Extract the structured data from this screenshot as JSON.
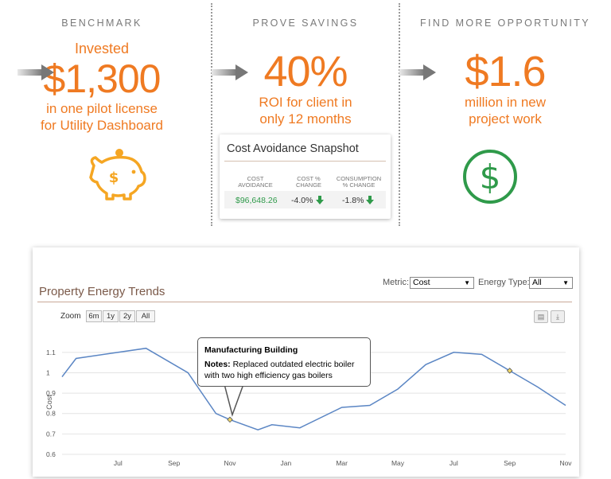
{
  "benchmark": {
    "heading": "BENCHMARK",
    "pre": "Invested",
    "value": "$1,300",
    "line1": "in one pilot license",
    "line2": "for Utility Dashboard",
    "icon": "piggy-bank-icon"
  },
  "savings": {
    "heading": "PROVE SAVINGS",
    "value": "40%",
    "line1": "ROI for client in",
    "line2": "only 12 months"
  },
  "opportunity": {
    "heading": "FIND MORE OPPORTUNITY",
    "value": "$1.6",
    "line1": "million in new",
    "line2": "project work",
    "icon": "dollar-circle-icon"
  },
  "snapshot": {
    "title": "Cost Avoidance Snapshot",
    "headers": [
      {
        "l1": "COST",
        "l2": "AVOIDANCE"
      },
      {
        "l1": "COST %",
        "l2": "CHANGE"
      },
      {
        "l1": "CONSUMPTION",
        "l2": "% CHANGE"
      }
    ],
    "values": [
      "$96,648.26",
      "-4.0%",
      "-1.8%"
    ]
  },
  "trends": {
    "title": "Property Energy Trends",
    "metric_label": "Metric:",
    "metric_value": "Cost",
    "energy_label": "Energy Type:",
    "energy_value": "All",
    "zoom_label": "Zoom",
    "zoom_buttons": [
      "6m",
      "1y",
      "2y",
      "All"
    ],
    "tooltip": {
      "title": "Manufacturing Building",
      "notes_label": "Notes:",
      "notes_text": "Replaced outdated electric boiler with two high efficiency gas boilers"
    }
  },
  "colors": {
    "accent": "#ef7a22",
    "piggy": "#f5a623",
    "green": "#2f9a4a",
    "line": "#5b86c4"
  },
  "chart_data": {
    "type": "line",
    "ylabel": "Cost",
    "ylim": [
      0.6,
      1.15
    ],
    "yticks": [
      "0.6",
      "0.7",
      "0.8",
      "0.9",
      "1",
      "1.1"
    ],
    "xticks": [
      {
        "label": "Jul",
        "t": 2
      },
      {
        "label": "Sep",
        "t": 4
      },
      {
        "label": "Nov",
        "t": 6
      },
      {
        "label": "Jan",
        "t": 8
      },
      {
        "label": "Mar",
        "t": 10
      },
      {
        "label": "May",
        "t": 12
      },
      {
        "label": "Jul",
        "t": 14
      },
      {
        "label": "Sep",
        "t": 16
      },
      {
        "label": "Nov",
        "t": 18
      }
    ],
    "series": [
      {
        "t": [
          0,
          0.5,
          3,
          4.5,
          5.5,
          6,
          7,
          7.5,
          8.5,
          10,
          11,
          12,
          13,
          14,
          15,
          16,
          17,
          18
        ],
        "values": [
          0.98,
          1.07,
          1.12,
          1.0,
          0.8,
          0.77,
          0.72,
          0.745,
          0.73,
          0.83,
          0.84,
          0.92,
          1.04,
          1.1,
          1.09,
          1.01,
          0.93,
          0.84
        ]
      }
    ],
    "markers_t": [
      6,
      16
    ]
  }
}
